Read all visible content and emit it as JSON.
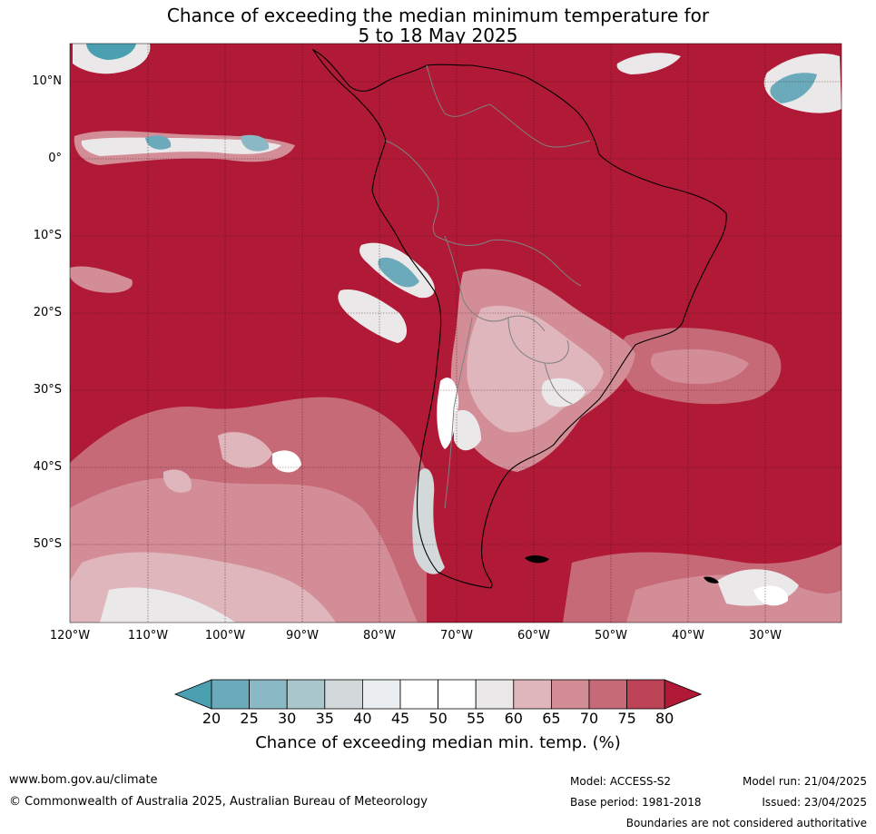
{
  "title": {
    "line1": "Chance of exceeding the median minimum temperature for",
    "line2": "5 to 18 May 2025"
  },
  "map": {
    "lat_labels": [
      "10°N",
      "0°",
      "10°S",
      "20°S",
      "30°S",
      "40°S",
      "50°S"
    ],
    "lon_labels": [
      "120°W",
      "110°W",
      "100°W",
      "90°W",
      "80°W",
      "70°W",
      "60°W",
      "50°W",
      "40°W",
      "30°W"
    ],
    "base_color": "#b01a36",
    "grid_color": "#3a0a12"
  },
  "colorbar": {
    "labels": [
      "20",
      "25",
      "30",
      "35",
      "40",
      "45",
      "50",
      "55",
      "60",
      "65",
      "70",
      "75",
      "80"
    ],
    "colors": [
      "#4a9fb0",
      "#6aaaba",
      "#8bb8c5",
      "#a9c6ca",
      "#d3d8da",
      "#eaeef0",
      "#ffffff",
      "#ffffff",
      "#ebe8e9",
      "#e0b6bd",
      "#d38d97",
      "#c76a77",
      "#bc4456",
      "#b01a36"
    ],
    "title": "Chance of exceeding median min. temp. (%)"
  },
  "footer": {
    "website": "www.bom.gov.au/climate",
    "copyright": "© Commonwealth of Australia 2025, Australian Bureau of Meteorology",
    "model": "Model: ACCESS-S2",
    "base_period": "Base period: 1981-2018",
    "model_run": "Model run: 21/04/2025",
    "issued": "Issued: 23/04/2025",
    "disclaimer": "Boundaries are not considered authoritative"
  }
}
